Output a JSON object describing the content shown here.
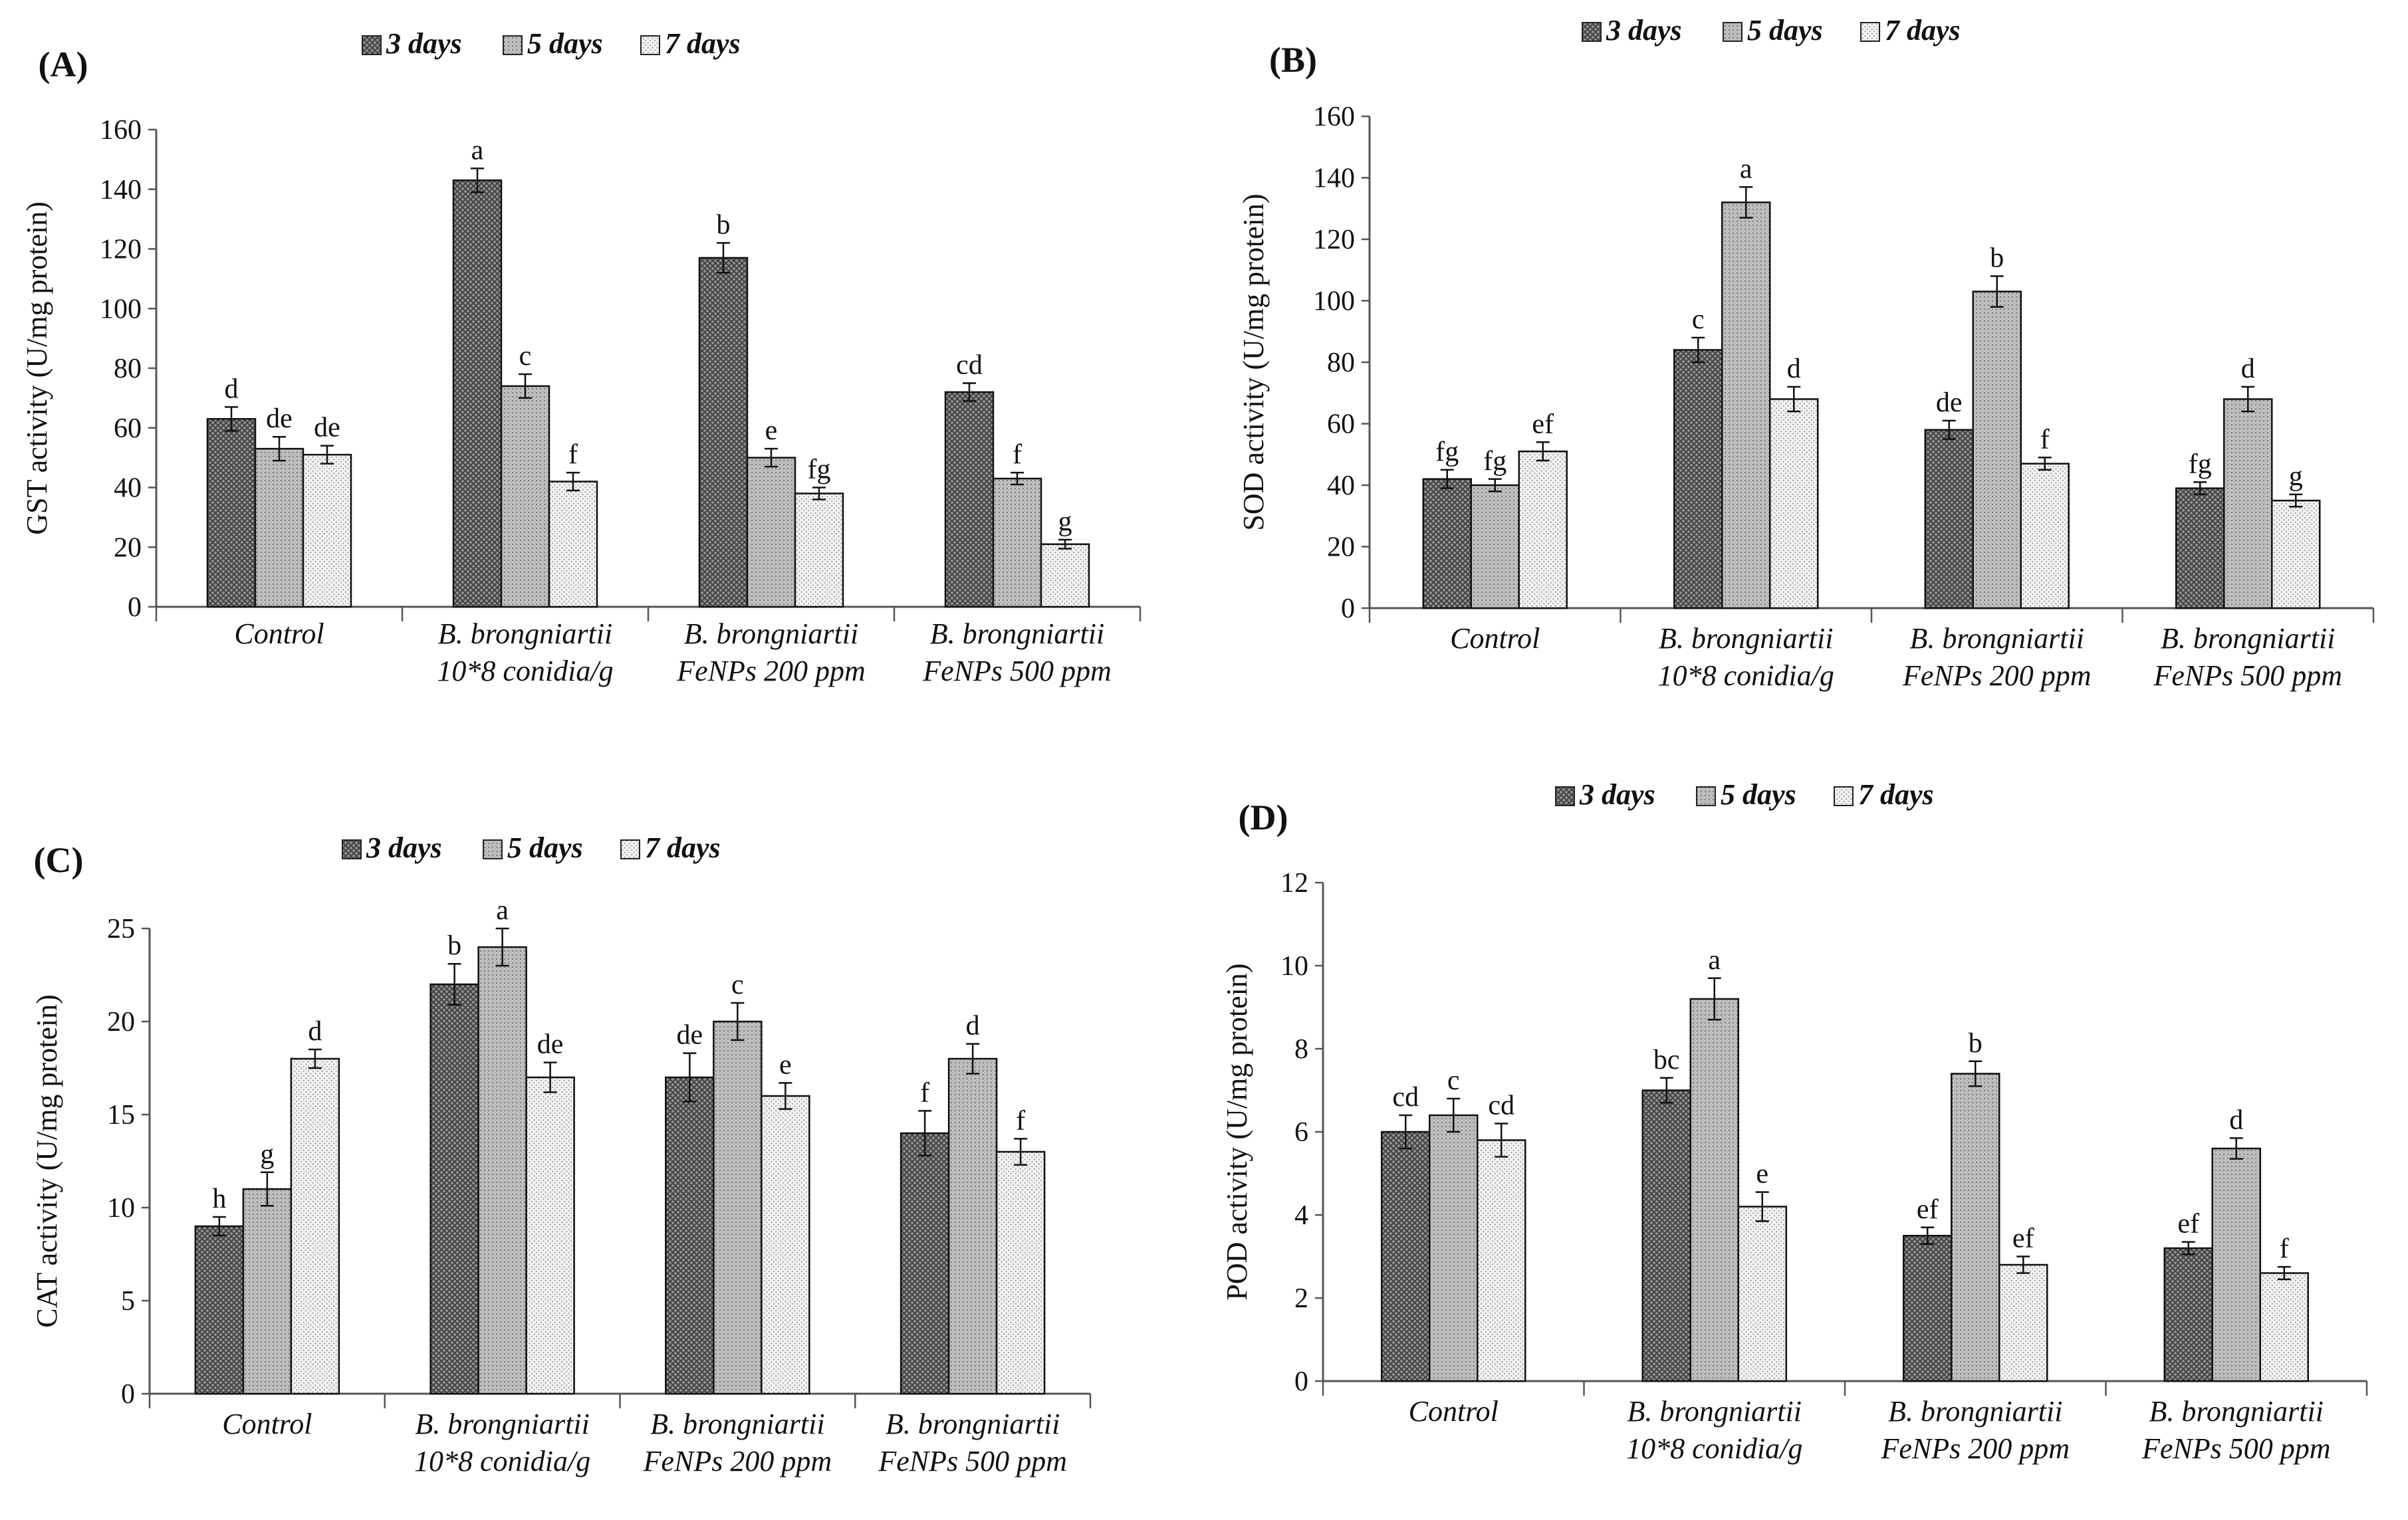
{
  "series_names": [
    "3 days",
    "5 days",
    "7 days"
  ],
  "categories": [
    [
      "Control"
    ],
    [
      "B. brongniartii",
      "10*8 conidia/g"
    ],
    [
      "B. brongniartii",
      "FeNPs 200 ppm"
    ],
    [
      "B. brongniartii",
      "FeNPs 500 ppm"
    ]
  ],
  "colors": {
    "bar_3_days": "#8a8a8a",
    "bar_5_days": "#b8b8b8",
    "bar_7_days": "#e8e8e8",
    "axis": "#555555"
  },
  "chart_data": [
    {
      "panel": "(A)",
      "type": "bar",
      "ylabel": "GST activity (U/mg protein)",
      "ylim": [
        0,
        160
      ],
      "yticks": [
        0,
        20,
        40,
        60,
        80,
        100,
        120,
        140,
        160
      ],
      "series": [
        {
          "name": "3 days",
          "values": [
            63,
            143,
            117,
            72
          ],
          "errors": [
            4,
            4,
            5,
            3
          ],
          "letters": [
            "d",
            "a",
            "b",
            "cd"
          ]
        },
        {
          "name": "5 days",
          "values": [
            53,
            74,
            50,
            43
          ],
          "errors": [
            4,
            4,
            3,
            2
          ],
          "letters": [
            "de",
            "c",
            "e",
            "f"
          ]
        },
        {
          "name": "7 days",
          "values": [
            51,
            42,
            38,
            21
          ],
          "errors": [
            3,
            3,
            2,
            1.5
          ],
          "letters": [
            "de",
            "f",
            "fg",
            "g"
          ]
        }
      ]
    },
    {
      "panel": "(B)",
      "type": "bar",
      "ylabel": "SOD activity (U/mg protein)",
      "ylim": [
        0,
        160
      ],
      "yticks": [
        0,
        20,
        40,
        60,
        80,
        100,
        120,
        140,
        160
      ],
      "series": [
        {
          "name": "3 days",
          "values": [
            42,
            84,
            58,
            39
          ],
          "errors": [
            3,
            4,
            3,
            2
          ],
          "letters": [
            "fg",
            "c",
            "de",
            "fg"
          ]
        },
        {
          "name": "5 days",
          "values": [
            40,
            132,
            103,
            68
          ],
          "errors": [
            2,
            5,
            5,
            4
          ],
          "letters": [
            "fg",
            "a",
            "b",
            "d"
          ]
        },
        {
          "name": "7 days",
          "values": [
            51,
            68,
            47,
            35
          ],
          "errors": [
            3,
            4,
            2,
            2
          ],
          "letters": [
            "ef",
            "d",
            "f",
            "g"
          ]
        }
      ]
    },
    {
      "panel": "(C)",
      "type": "bar",
      "ylabel": "CAT activity (U/mg protein)",
      "ylim": [
        0,
        25
      ],
      "yticks": [
        0,
        5,
        10,
        15,
        20,
        25
      ],
      "series": [
        {
          "name": "3 days",
          "values": [
            9,
            22,
            17,
            14
          ],
          "errors": [
            0.5,
            1.1,
            1.3,
            1.2
          ],
          "letters": [
            "h",
            "b",
            "de",
            "f"
          ]
        },
        {
          "name": "5 days",
          "values": [
            11,
            24,
            20,
            18
          ],
          "errors": [
            0.9,
            1.0,
            1.0,
            0.8
          ],
          "letters": [
            "g",
            "a",
            "c",
            "d"
          ]
        },
        {
          "name": "7 days",
          "values": [
            18,
            17,
            16,
            13
          ],
          "errors": [
            0.5,
            0.8,
            0.7,
            0.7
          ],
          "letters": [
            "d",
            "de",
            "e",
            "f"
          ]
        }
      ]
    },
    {
      "panel": "(D)",
      "type": "bar",
      "ylabel": "POD activity (U/mg protein)",
      "ylim": [
        0,
        12
      ],
      "yticks": [
        0,
        2,
        4,
        6,
        8,
        10,
        12
      ],
      "series": [
        {
          "name": "3 days",
          "values": [
            6.0,
            7.0,
            3.5,
            3.2
          ],
          "errors": [
            0.4,
            0.3,
            0.2,
            0.15
          ],
          "letters": [
            "cd",
            "bc",
            "ef",
            "ef"
          ]
        },
        {
          "name": "5 days",
          "values": [
            6.4,
            9.2,
            7.4,
            5.6
          ],
          "errors": [
            0.4,
            0.5,
            0.3,
            0.25
          ],
          "letters": [
            "c",
            "a",
            "b",
            "d"
          ]
        },
        {
          "name": "7 days",
          "values": [
            5.8,
            4.2,
            2.8,
            2.6
          ],
          "errors": [
            0.4,
            0.35,
            0.2,
            0.15
          ],
          "letters": [
            "cd",
            "e",
            "ef",
            "f"
          ]
        }
      ]
    }
  ]
}
